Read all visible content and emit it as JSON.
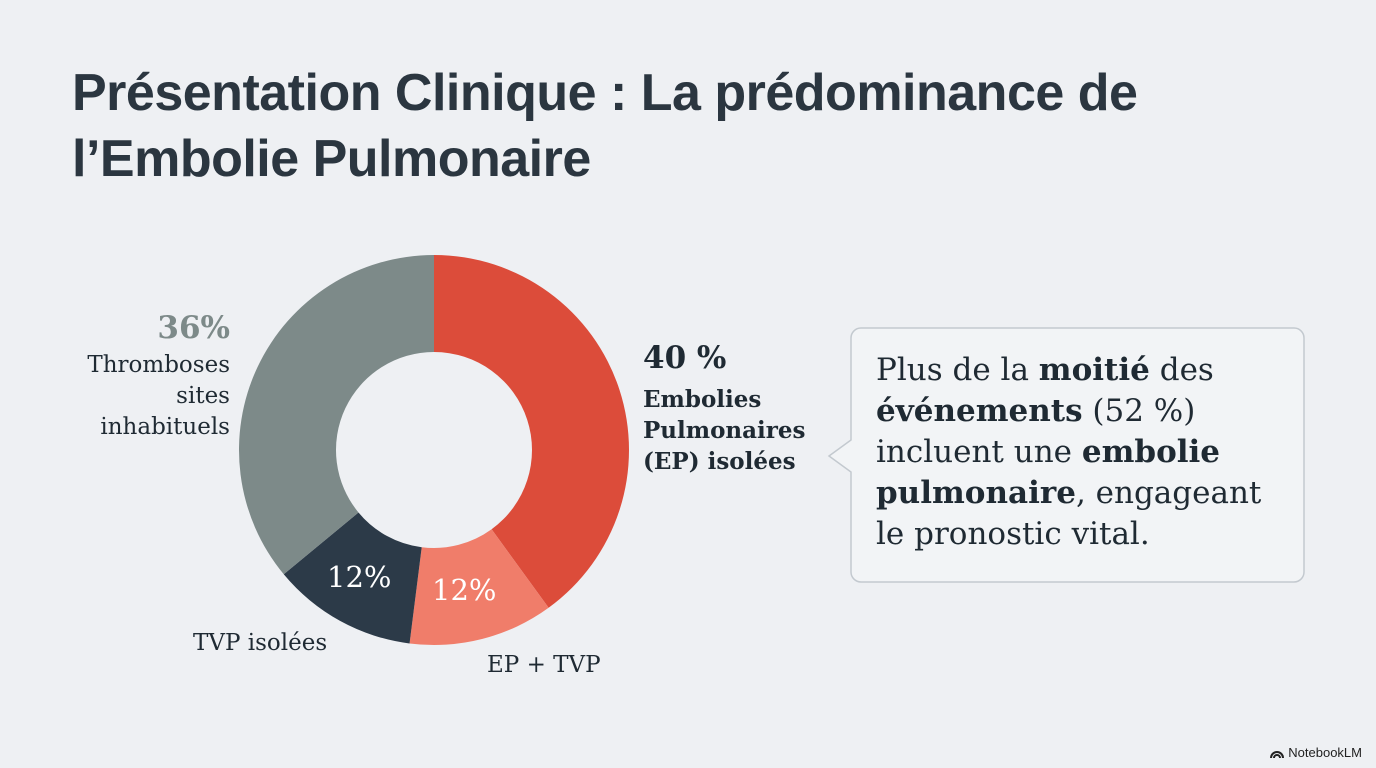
{
  "chart_data": {
    "type": "pie",
    "donut": true,
    "title": "Présentation Clinique : La prédominance de l’Embolie Pulmonaire",
    "categories": [
      "Embolies Pulmonaires (EP) isolées",
      "EP + TVP",
      "TVP isolées",
      "Thromboses sites inhabituels"
    ],
    "values": [
      40,
      12,
      12,
      36
    ],
    "value_labels": [
      "40 %",
      "12%",
      "12%",
      "36%"
    ],
    "colors": [
      "#dc4c3a",
      "#f07d6a",
      "#2c3a48",
      "#7d8a89"
    ]
  },
  "callout": {
    "runs": [
      {
        "text": "Plus de la ",
        "bold": false
      },
      {
        "text": "moitié",
        "bold": true
      },
      {
        "text": " des ",
        "bold": false
      },
      {
        "text": "événements",
        "bold": true
      },
      {
        "text": " (52 %) incluent une ",
        "bold": false
      },
      {
        "text": "embolie pulmonaire",
        "bold": true
      },
      {
        "text": ", engageant le pronostic vital.",
        "bold": false
      }
    ]
  },
  "watermark": "NotebookLM"
}
